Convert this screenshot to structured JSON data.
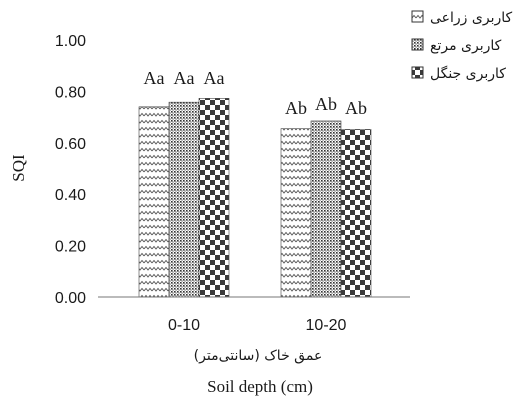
{
  "chart_data": {
    "type": "bar",
    "ylabel": "SQI",
    "xlabel": "Soil depth (cm)",
    "xlabel_fa": "عمق خاک (سانتی‌متر)",
    "categories": [
      "0-10",
      "10-20"
    ],
    "ylim": [
      0,
      1.0
    ],
    "yticks": [
      "0.00",
      "0.20",
      "0.40",
      "0.60",
      "0.80",
      "1.00"
    ],
    "grid": false,
    "legend_position": "top-right",
    "series": [
      {
        "name": "کاربری زراعی",
        "pattern": "zigzag",
        "values": [
          0.74,
          0.655
        ],
        "labels": [
          {
            "base": "A",
            "sup": "a"
          },
          {
            "base": "A",
            "sup": "b"
          }
        ]
      },
      {
        "name": "کاربری مرتع",
        "pattern": "dots",
        "values": [
          0.758,
          0.685
        ],
        "labels": [
          {
            "base": "A",
            "sup": "a"
          },
          {
            "base": "A",
            "sup": "b"
          }
        ]
      },
      {
        "name": "کاربری جنگل",
        "pattern": "checker",
        "values": [
          0.773,
          0.652
        ],
        "labels": [
          {
            "base": "A",
            "sup": "a"
          },
          {
            "base": "A",
            "sup": "b"
          }
        ]
      }
    ]
  }
}
